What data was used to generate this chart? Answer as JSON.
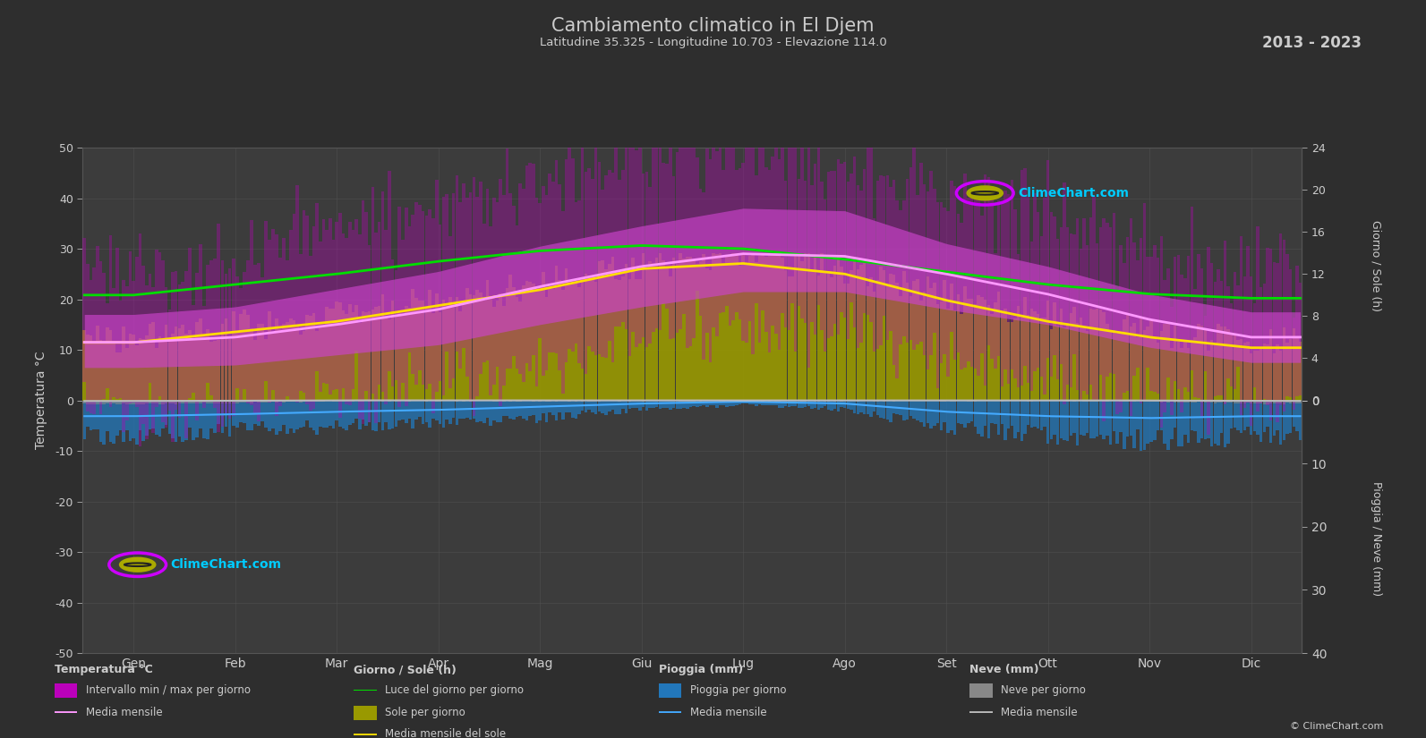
{
  "title": "Cambiamento climatico in El Djem",
  "subtitle": "Latitudine 35.325 - Longitudine 10.703 - Elevazione 114.0",
  "year_range": "2013 - 2023",
  "background_color": "#2e2e2e",
  "plot_bg_color": "#3c3c3c",
  "grid_color": "#555555",
  "text_color": "#cccccc",
  "months": [
    "Gen",
    "Feb",
    "Mar",
    "Apr",
    "Mag",
    "Giu",
    "Lug",
    "Ago",
    "Set",
    "Ott",
    "Nov",
    "Dic"
  ],
  "temp_yticks": [
    -50,
    -40,
    -30,
    -20,
    -10,
    0,
    10,
    20,
    30,
    40,
    50
  ],
  "sun_ticks_h": [
    0,
    4,
    8,
    12,
    16,
    20,
    24
  ],
  "rain_ticks_mm": [
    0,
    10,
    20,
    30,
    40
  ],
  "temp_mean_monthly": [
    11.5,
    12.5,
    15.0,
    18.0,
    22.5,
    26.5,
    29.0,
    28.5,
    25.0,
    21.0,
    16.0,
    12.5
  ],
  "temp_max_monthly": [
    17.0,
    18.5,
    22.0,
    25.5,
    30.5,
    34.5,
    38.0,
    37.5,
    31.0,
    26.5,
    21.0,
    17.5
  ],
  "temp_min_monthly": [
    6.5,
    7.0,
    9.0,
    11.0,
    15.0,
    18.5,
    21.5,
    21.5,
    18.0,
    15.0,
    10.5,
    7.5
  ],
  "temp_abs_max_monthly": [
    26,
    28,
    35,
    39,
    44,
    48,
    49,
    47,
    42,
    37,
    29,
    25
  ],
  "temp_abs_min_monthly": [
    -2,
    -1,
    1,
    3,
    7,
    11,
    14,
    14,
    9,
    5,
    1,
    -1
  ],
  "sun_daylight_monthly": [
    10.0,
    11.0,
    12.0,
    13.2,
    14.2,
    14.7,
    14.4,
    13.4,
    12.2,
    11.0,
    10.1,
    9.7
  ],
  "sun_mean_monthly": [
    5.5,
    6.5,
    7.5,
    9.0,
    10.5,
    12.5,
    13.0,
    12.0,
    9.5,
    7.5,
    6.0,
    5.0
  ],
  "rain_daily_max_monthly": [
    4.0,
    3.5,
    3.0,
    2.5,
    2.0,
    1.0,
    0.5,
    1.0,
    3.0,
    4.0,
    4.5,
    4.0
  ],
  "rain_mean_monthly": [
    2.5,
    2.2,
    1.8,
    1.5,
    1.0,
    0.5,
    0.2,
    0.5,
    1.8,
    2.5,
    2.8,
    2.5
  ],
  "snow_daily_max_monthly": [
    0.5,
    0.3,
    0.0,
    0.0,
    0.0,
    0.0,
    0.0,
    0.0,
    0.0,
    0.0,
    0.1,
    0.4
  ],
  "snow_mean_monthly": [
    0.1,
    0.05,
    0.0,
    0.0,
    0.0,
    0.0,
    0.0,
    0.0,
    0.0,
    0.0,
    0.02,
    0.08
  ],
  "color_temp_extreme_fill": "#bb00bb",
  "color_temp_mean_fill": "#cc44cc",
  "color_temp_mean_line": "#ff99ff",
  "color_sun_fill": "#999900",
  "color_sun_daylight_line": "#00dd00",
  "color_sun_mean_line": "#ffdd00",
  "color_rain_fill": "#2277bb",
  "color_rain_line": "#44aaff",
  "color_snow_fill": "#888888",
  "color_snow_line": "#bbbbbb",
  "color_watermark": "#00ccff",
  "color_logo_ring": "#cc00ff",
  "color_logo_globe": "#aaaa00"
}
